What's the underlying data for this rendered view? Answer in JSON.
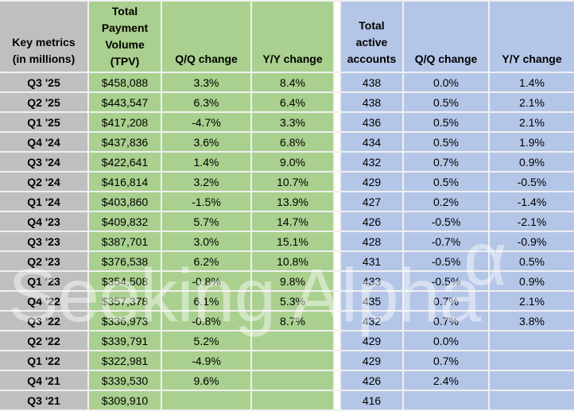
{
  "chart_data": {
    "type": "table",
    "header": {
      "key_metrics": "Key metrics\n(in millions)",
      "tpv": "Total\nPayment\nVolume\n(TPV)",
      "tpv_qq": "Q/Q change",
      "tpv_yy": "Y/Y change",
      "accounts": "Total\nactive\naccounts",
      "acct_qq": "Q/Q change",
      "acct_yy": "Y/Y change"
    },
    "rows": [
      {
        "label": "Q3 '25",
        "tpv": "$458,088",
        "tpv_qq": "3.3%",
        "tpv_yy": "8.4%",
        "accounts": "438",
        "acct_qq": "0.0%",
        "acct_yy": "1.4%"
      },
      {
        "label": "Q2 '25",
        "tpv": "$443,547",
        "tpv_qq": "6.3%",
        "tpv_yy": "6.4%",
        "accounts": "438",
        "acct_qq": "0.5%",
        "acct_yy": "2.1%"
      },
      {
        "label": "Q1 '25",
        "tpv": "$417,208",
        "tpv_qq": "-4.7%",
        "tpv_yy": "3.3%",
        "accounts": "436",
        "acct_qq": "0.5%",
        "acct_yy": "2.1%"
      },
      {
        "label": "Q4 '24",
        "tpv": "$437,836",
        "tpv_qq": "3.6%",
        "tpv_yy": "6.8%",
        "accounts": "434",
        "acct_qq": "0.5%",
        "acct_yy": "1.9%"
      },
      {
        "label": "Q3 '24",
        "tpv": "$422,641",
        "tpv_qq": "1.4%",
        "tpv_yy": "9.0%",
        "accounts": "432",
        "acct_qq": "0.7%",
        "acct_yy": "0.9%"
      },
      {
        "label": "Q2 '24",
        "tpv": "$416,814",
        "tpv_qq": "3.2%",
        "tpv_yy": "10.7%",
        "accounts": "429",
        "acct_qq": "0.5%",
        "acct_yy": "-0.5%"
      },
      {
        "label": "Q1 '24",
        "tpv": "$403,860",
        "tpv_qq": "-1.5%",
        "tpv_yy": "13.9%",
        "accounts": "427",
        "acct_qq": "0.2%",
        "acct_yy": "-1.4%"
      },
      {
        "label": "Q4 '23",
        "tpv": "$409,832",
        "tpv_qq": "5.7%",
        "tpv_yy": "14.7%",
        "accounts": "426",
        "acct_qq": "-0.5%",
        "acct_yy": "-2.1%"
      },
      {
        "label": "Q3 '23",
        "tpv": "$387,701",
        "tpv_qq": "3.0%",
        "tpv_yy": "15.1%",
        "accounts": "428",
        "acct_qq": "-0.7%",
        "acct_yy": "-0.9%"
      },
      {
        "label": "Q2 '23",
        "tpv": "$376,538",
        "tpv_qq": "6.2%",
        "tpv_yy": "10.8%",
        "accounts": "431",
        "acct_qq": "-0.5%",
        "acct_yy": "0.5%"
      },
      {
        "label": "Q1 '23",
        "tpv": "$354,508",
        "tpv_qq": "-0.8%",
        "tpv_yy": "9.8%",
        "accounts": "433",
        "acct_qq": "-0.5%",
        "acct_yy": "0.9%"
      },
      {
        "label": "Q4 '22",
        "tpv": "$357,378",
        "tpv_qq": "6.1%",
        "tpv_yy": "5.3%",
        "accounts": "435",
        "acct_qq": "0.7%",
        "acct_yy": "2.1%"
      },
      {
        "label": "Q3 '22",
        "tpv": "$336,973",
        "tpv_qq": "-0.8%",
        "tpv_yy": "8.7%",
        "accounts": "432",
        "acct_qq": "0.7%",
        "acct_yy": "3.8%"
      },
      {
        "label": "Q2 '22",
        "tpv": "$339,791",
        "tpv_qq": "5.2%",
        "tpv_yy": "",
        "accounts": "429",
        "acct_qq": "0.0%",
        "acct_yy": ""
      },
      {
        "label": "Q1 '22",
        "tpv": "$322,981",
        "tpv_qq": "-4.9%",
        "tpv_yy": "",
        "accounts": "429",
        "acct_qq": "0.7%",
        "acct_yy": ""
      },
      {
        "label": "Q4 '21",
        "tpv": "$339,530",
        "tpv_qq": "9.6%",
        "tpv_yy": "",
        "accounts": "426",
        "acct_qq": "2.4%",
        "acct_yy": ""
      },
      {
        "label": "Q3 '21",
        "tpv": "$309,910",
        "tpv_qq": "",
        "tpv_yy": "",
        "accounts": "416",
        "acct_qq": "",
        "acct_yy": ""
      }
    ]
  },
  "watermark": {
    "text": "Seeking Alpha",
    "alpha_symbol": "α"
  },
  "colors": {
    "label_gray": "#bfbfbf",
    "tpv_green": "#a9d08e",
    "accounts_blue": "#b4c6e7",
    "gridline": "#f0f0f0",
    "text": "#000000"
  }
}
